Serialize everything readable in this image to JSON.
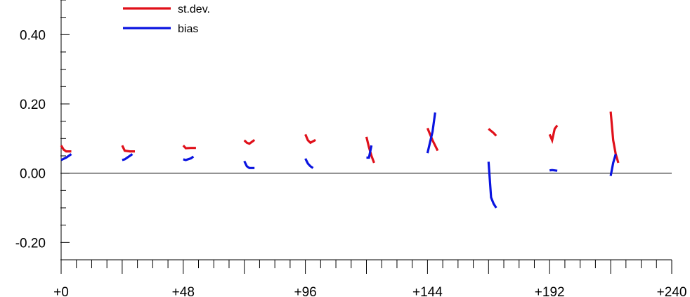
{
  "chart_data": {
    "type": "line",
    "title": "",
    "xlabel": "",
    "ylabel": "",
    "xlim": [
      0,
      240
    ],
    "ylim": [
      -0.25,
      0.5
    ],
    "x_ticks": [
      0,
      48,
      96,
      144,
      192,
      240
    ],
    "x_tick_labels": [
      "+0",
      "+48",
      "+96",
      "+144",
      "+192",
      "+240"
    ],
    "y_ticks": [
      0.4,
      0.2,
      0.0,
      -0.2
    ],
    "y_tick_labels": [
      "0.40",
      "0.20",
      "0.00",
      "-0.20"
    ],
    "zero_line": true,
    "grid": false,
    "legend": {
      "position": "top-left",
      "items": [
        {
          "label": "st.dev.",
          "color": "#e0101a"
        },
        {
          "label": "bias",
          "color": "#0a14e0"
        }
      ]
    },
    "series": [
      {
        "name": "st.dev.",
        "color": "#e0101a",
        "segments": [
          [
            [
              0,
              0.08
            ],
            [
              1,
              0.068
            ],
            [
              2,
              0.063
            ],
            [
              4,
              0.063
            ]
          ],
          [
            [
              24,
              0.08
            ],
            [
              25,
              0.065
            ],
            [
              27,
              0.063
            ],
            [
              29,
              0.063
            ]
          ],
          [
            [
              48,
              0.08
            ],
            [
              49,
              0.072
            ],
            [
              51,
              0.073
            ],
            [
              53,
              0.073
            ]
          ],
          [
            [
              72,
              0.095
            ],
            [
              73,
              0.088
            ],
            [
              74,
              0.085
            ],
            [
              76,
              0.096
            ]
          ],
          [
            [
              96,
              0.112
            ],
            [
              97,
              0.095
            ],
            [
              98,
              0.088
            ],
            [
              100,
              0.096
            ]
          ],
          [
            [
              120,
              0.105
            ],
            [
              121,
              0.075
            ],
            [
              122,
              0.05
            ],
            [
              123,
              0.03
            ]
          ],
          [
            [
              144,
              0.13
            ],
            [
              146,
              0.095
            ],
            [
              148,
              0.065
            ]
          ],
          [
            [
              168,
              0.128
            ],
            [
              170,
              0.116
            ],
            [
              171,
              0.108
            ]
          ],
          [
            [
              192,
              0.112
            ],
            [
              193,
              0.095
            ],
            [
              194,
              0.128
            ],
            [
              195,
              0.138
            ]
          ],
          [
            [
              216,
              0.178
            ],
            [
              217,
              0.095
            ],
            [
              218,
              0.055
            ],
            [
              219,
              0.03
            ]
          ]
        ]
      },
      {
        "name": "bias",
        "color": "#0a14e0",
        "segments": [
          [
            [
              0,
              0.038
            ],
            [
              2,
              0.045
            ],
            [
              4,
              0.055
            ]
          ],
          [
            [
              24,
              0.038
            ],
            [
              25,
              0.04
            ],
            [
              27,
              0.05
            ],
            [
              28,
              0.055
            ]
          ],
          [
            [
              48,
              0.04
            ],
            [
              49,
              0.038
            ],
            [
              51,
              0.043
            ],
            [
              52,
              0.048
            ]
          ],
          [
            [
              72,
              0.035
            ],
            [
              73,
              0.02
            ],
            [
              74,
              0.015
            ],
            [
              76,
              0.015
            ]
          ],
          [
            [
              96,
              0.042
            ],
            [
              97,
              0.028
            ],
            [
              98,
              0.02
            ],
            [
              99,
              0.015
            ]
          ],
          [
            [
              120,
              0.045
            ],
            [
              121,
              0.045
            ],
            [
              122,
              0.08
            ]
          ],
          [
            [
              144,
              0.058
            ],
            [
              146,
              0.12
            ],
            [
              147,
              0.175
            ]
          ],
          [
            [
              168,
              0.033
            ],
            [
              169,
              -0.07
            ],
            [
              170,
              -0.088
            ],
            [
              171,
              -0.1
            ]
          ],
          [
            [
              192,
              0.008
            ],
            [
              193,
              0.009
            ],
            [
              195,
              0.007
            ]
          ],
          [
            [
              216,
              -0.008
            ],
            [
              217,
              0.03
            ],
            [
              218,
              0.055
            ]
          ]
        ]
      }
    ]
  }
}
